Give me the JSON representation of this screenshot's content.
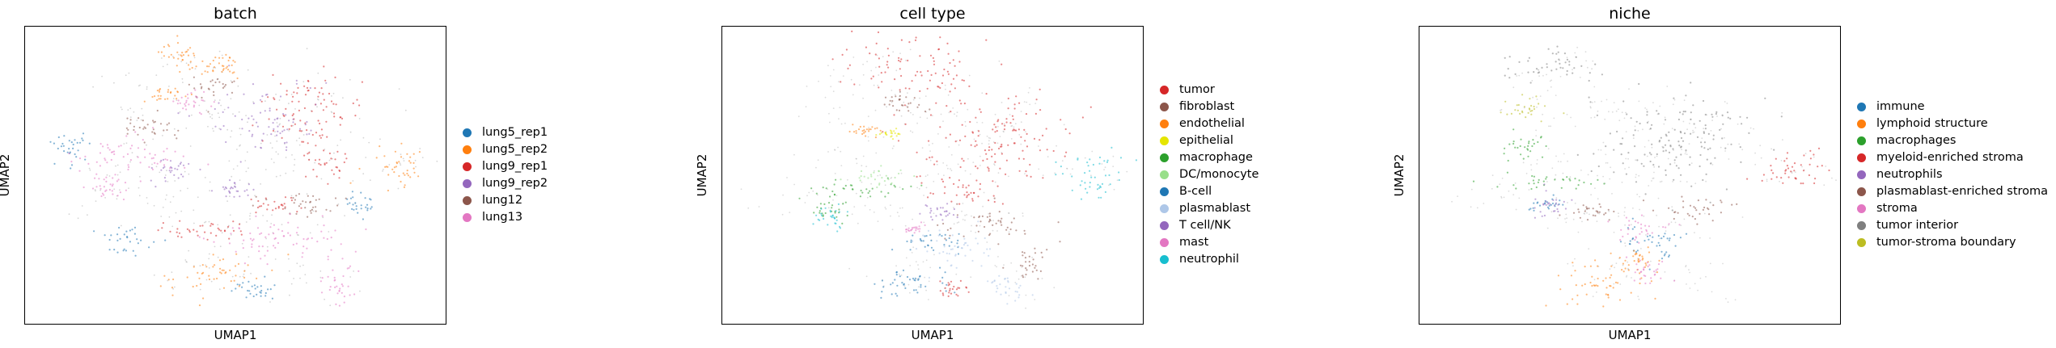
{
  "chart_data": [
    {
      "type": "scatter",
      "title": "batch",
      "xlabel": "UMAP1",
      "ylabel": "UMAP2",
      "grid": false,
      "legend_position": "right",
      "background": "#8a8a8a",
      "series": [
        {
          "name": "lung5_rep1",
          "color": "#1f77b4",
          "regions": [
            [
              0.25,
              0.72,
              0.06,
              0.05
            ],
            [
              0.1,
              0.4,
              0.05,
              0.06
            ],
            [
              0.55,
              0.88,
              0.06,
              0.04
            ],
            [
              0.8,
              0.6,
              0.04,
              0.04
            ]
          ]
        },
        {
          "name": "lung5_rep2",
          "color": "#ff7f0e",
          "regions": [
            [
              0.37,
              0.1,
              0.08,
              0.07
            ],
            [
              0.47,
              0.14,
              0.04,
              0.05
            ],
            [
              0.89,
              0.48,
              0.08,
              0.07
            ],
            [
              0.45,
              0.84,
              0.12,
              0.07
            ],
            [
              0.33,
              0.23,
              0.05,
              0.03
            ]
          ]
        },
        {
          "name": "lung9_rep1",
          "color": "#d62728",
          "regions": [
            [
              0.68,
              0.28,
              0.13,
              0.14
            ],
            [
              0.72,
              0.45,
              0.06,
              0.05
            ],
            [
              0.42,
              0.68,
              0.12,
              0.04
            ],
            [
              0.6,
              0.6,
              0.06,
              0.03
            ]
          ]
        },
        {
          "name": "lung9_rep2",
          "color": "#9467bd",
          "regions": [
            [
              0.57,
              0.31,
              0.13,
              0.12
            ],
            [
              0.35,
              0.48,
              0.05,
              0.04
            ],
            [
              0.5,
              0.55,
              0.06,
              0.03
            ]
          ]
        },
        {
          "name": "lung12",
          "color": "#8c564b",
          "regions": [
            [
              0.3,
              0.33,
              0.08,
              0.05
            ],
            [
              0.66,
              0.6,
              0.1,
              0.04
            ],
            [
              0.45,
              0.2,
              0.05,
              0.03
            ]
          ]
        },
        {
          "name": "lung13",
          "color": "#e377c2",
          "regions": [
            [
              0.24,
              0.45,
              0.16,
              0.08
            ],
            [
              0.62,
              0.72,
              0.18,
              0.08
            ],
            [
              0.74,
              0.86,
              0.05,
              0.07
            ],
            [
              0.4,
              0.25,
              0.06,
              0.04
            ],
            [
              0.2,
              0.55,
              0.05,
              0.04
            ]
          ]
        }
      ]
    },
    {
      "type": "scatter",
      "title": "cell type",
      "xlabel": "UMAP1",
      "ylabel": "UMAP2",
      "grid": false,
      "legend_position": "right",
      "background": "#9a9a9a",
      "series": [
        {
          "name": "tumor",
          "color": "#d62728",
          "regions": [
            [
              0.45,
              0.14,
              0.18,
              0.1
            ],
            [
              0.62,
              0.38,
              0.2,
              0.16
            ],
            [
              0.58,
              0.55,
              0.08,
              0.05
            ],
            [
              0.55,
              0.88,
              0.05,
              0.03
            ]
          ]
        },
        {
          "name": "fibroblast",
          "color": "#8c564b",
          "regions": [
            [
              0.64,
              0.66,
              0.12,
              0.06
            ],
            [
              0.42,
              0.26,
              0.05,
              0.04
            ],
            [
              0.73,
              0.8,
              0.05,
              0.05
            ]
          ]
        },
        {
          "name": "endothelial",
          "color": "#ff7f0e",
          "regions": [
            [
              0.33,
              0.35,
              0.04,
              0.02
            ]
          ]
        },
        {
          "name": "epithelial",
          "color": "#e5e500",
          "regions": [
            [
              0.4,
              0.36,
              0.03,
              0.02
            ]
          ]
        },
        {
          "name": "macrophage",
          "color": "#2ca02c",
          "regions": [
            [
              0.32,
              0.55,
              0.14,
              0.03
            ],
            [
              0.25,
              0.62,
              0.05,
              0.03
            ]
          ]
        },
        {
          "name": "DC/monocyte",
          "color": "#98df8a",
          "regions": [
            [
              0.38,
              0.5,
              0.06,
              0.03
            ]
          ]
        },
        {
          "name": "B-cell",
          "color": "#1f77b4",
          "regions": [
            [
              0.45,
              0.86,
              0.11,
              0.06
            ],
            [
              0.5,
              0.72,
              0.08,
              0.04
            ]
          ]
        },
        {
          "name": "plasmablast",
          "color": "#aec7e8",
          "regions": [
            [
              0.56,
              0.75,
              0.1,
              0.07
            ],
            [
              0.68,
              0.88,
              0.05,
              0.05
            ]
          ]
        },
        {
          "name": "T cell/NK",
          "color": "#9467bd",
          "regions": [
            [
              0.52,
              0.62,
              0.06,
              0.03
            ]
          ]
        },
        {
          "name": "mast",
          "color": "#e377c2",
          "regions": [
            [
              0.46,
              0.68,
              0.03,
              0.02
            ]
          ]
        },
        {
          "name": "neutrophil",
          "color": "#17becf",
          "regions": [
            [
              0.88,
              0.5,
              0.09,
              0.08
            ],
            [
              0.26,
              0.64,
              0.05,
              0.05
            ]
          ]
        }
      ]
    },
    {
      "type": "scatter",
      "title": "niche",
      "xlabel": "UMAP1",
      "ylabel": "UMAP2",
      "grid": false,
      "legend_position": "right",
      "background": "#9a9a9a",
      "series": [
        {
          "name": "immune",
          "color": "#1f77b4",
          "regions": [
            [
              0.55,
              0.72,
              0.1,
              0.06
            ],
            [
              0.3,
              0.6,
              0.04,
              0.03
            ]
          ]
        },
        {
          "name": "lymphoid structure",
          "color": "#ff7f0e",
          "regions": [
            [
              0.43,
              0.86,
              0.12,
              0.08
            ],
            [
              0.52,
              0.78,
              0.05,
              0.04
            ]
          ]
        },
        {
          "name": "macrophages",
          "color": "#2ca02c",
          "regions": [
            [
              0.3,
              0.52,
              0.12,
              0.03
            ],
            [
              0.25,
              0.4,
              0.06,
              0.04
            ]
          ]
        },
        {
          "name": "myeloid-enriched stroma",
          "color": "#d62728",
          "regions": [
            [
              0.88,
              0.49,
              0.09,
              0.07
            ]
          ]
        },
        {
          "name": "neutrophils",
          "color": "#9467bd",
          "regions": [
            [
              0.3,
              0.6,
              0.05,
              0.04
            ]
          ]
        },
        {
          "name": "plasmablast-enriched stroma",
          "color": "#8c564b",
          "regions": [
            [
              0.65,
              0.62,
              0.1,
              0.04
            ],
            [
              0.4,
              0.62,
              0.06,
              0.03
            ]
          ]
        },
        {
          "name": "stroma",
          "color": "#e377c2",
          "regions": [
            [
              0.52,
              0.68,
              0.07,
              0.04
            ],
            [
              0.55,
              0.82,
              0.05,
              0.05
            ]
          ]
        },
        {
          "name": "tumor interior",
          "color": "#7f7f7f",
          "regions": [
            [
              0.62,
              0.38,
              0.2,
              0.18
            ],
            [
              0.32,
              0.14,
              0.12,
              0.06
            ]
          ]
        },
        {
          "name": "tumor-stroma boundary",
          "color": "#bcbd22",
          "regions": [
            [
              0.26,
              0.28,
              0.06,
              0.04
            ]
          ]
        }
      ]
    }
  ]
}
